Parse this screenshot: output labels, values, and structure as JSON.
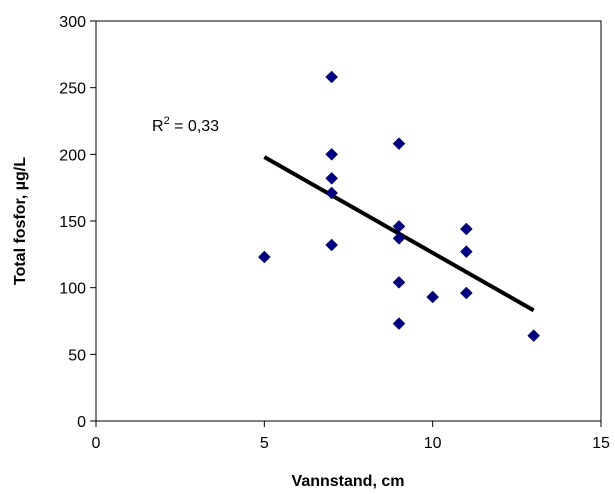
{
  "chart_data": {
    "type": "scatter",
    "title": "",
    "xlabel": "Vannstand, cm",
    "ylabel": "Total fosfor, µg/L",
    "xlim": [
      0,
      15
    ],
    "ylim": [
      0,
      300
    ],
    "x_ticks": [
      "0",
      "5",
      "10",
      "15"
    ],
    "y_ticks": [
      "0",
      "50",
      "100",
      "150",
      "200",
      "250",
      "300"
    ],
    "grid": false,
    "legend": "none",
    "series": [
      {
        "marker": "diamond",
        "color": "#000080",
        "points": [
          {
            "x": 5,
            "y": 123
          },
          {
            "x": 7,
            "y": 258
          },
          {
            "x": 7,
            "y": 200
          },
          {
            "x": 7,
            "y": 182
          },
          {
            "x": 7,
            "y": 171
          },
          {
            "x": 7,
            "y": 132
          },
          {
            "x": 9,
            "y": 208
          },
          {
            "x": 9,
            "y": 146
          },
          {
            "x": 9,
            "y": 137
          },
          {
            "x": 9,
            "y": 104
          },
          {
            "x": 9,
            "y": 73
          },
          {
            "x": 10,
            "y": 93
          },
          {
            "x": 11,
            "y": 144
          },
          {
            "x": 11,
            "y": 127
          },
          {
            "x": 11,
            "y": 96
          },
          {
            "x": 13,
            "y": 64
          }
        ]
      }
    ],
    "trendline": {
      "type": "linear",
      "color": "#000000",
      "x": [
        5,
        13
      ],
      "y": [
        198,
        83
      ]
    },
    "annotation": {
      "base": "R",
      "sup": "2",
      "rest": " = 0,33"
    }
  }
}
